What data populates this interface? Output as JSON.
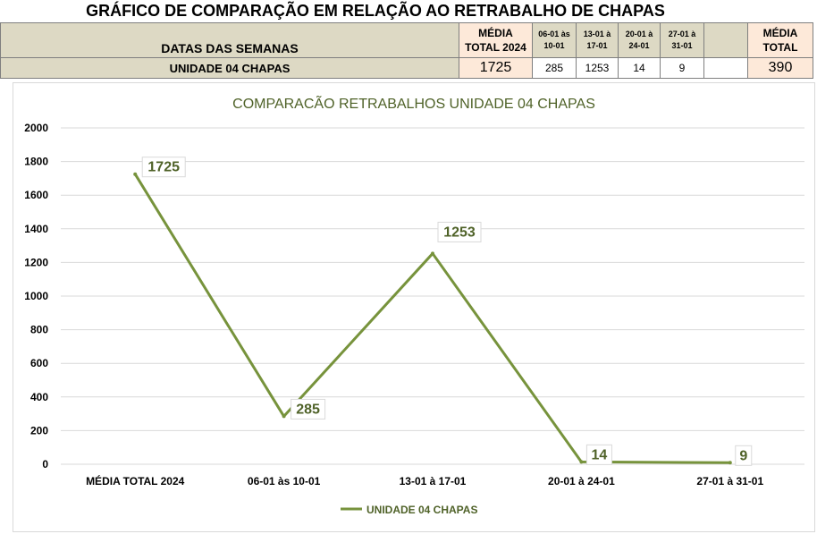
{
  "sheet": {
    "title": "GRÁFICO DE COMPARAÇÃO EM RELAÇÃO AO RETRABALHO DE CHAPAS",
    "row_header_label": "DATAS DAS SEMANAS",
    "row_label": "UNIDADE 04 CHAPAS",
    "media_total_2024_label": [
      "MÉDIA",
      "TOTAL 2024"
    ],
    "weeks": [
      {
        "label": [
          "06-01 às",
          "10-01"
        ],
        "value": "285"
      },
      {
        "label": [
          "13-01 à",
          "17-01"
        ],
        "value": "1253"
      },
      {
        "label": [
          "20-01 à",
          "24-01"
        ],
        "value": "14"
      },
      {
        "label": [
          "27-01 à",
          "31-01"
        ],
        "value": "9"
      }
    ],
    "media_total_2024_value": "1725",
    "media_total_label": [
      "MÉDIA",
      "TOTAL"
    ],
    "media_total_value": "390"
  },
  "chart_data": {
    "type": "line",
    "title": "COMPARACÃO RETRABALHOS UNIDADE 04 CHAPAS",
    "categories": [
      "MÉDIA TOTAL 2024",
      "06-01 às 10-01",
      "13-01 à 17-01",
      "20-01 à 24-01",
      "27-01 à 31-01"
    ],
    "series": [
      {
        "name": "UNIDADE 04 CHAPAS",
        "values": [
          1725,
          285,
          1253,
          14,
          9
        ]
      }
    ],
    "ylim": [
      0,
      2000
    ],
    "yticks": [
      0,
      200,
      400,
      600,
      800,
      1000,
      1200,
      1400,
      1600,
      1800,
      2000
    ],
    "grid": true,
    "legend": "bottom",
    "data_labels": true,
    "colors": {
      "line": "#77933c",
      "label_text": "#4f6228",
      "title": "#4f6228",
      "grid": "#d9d9d9"
    }
  }
}
